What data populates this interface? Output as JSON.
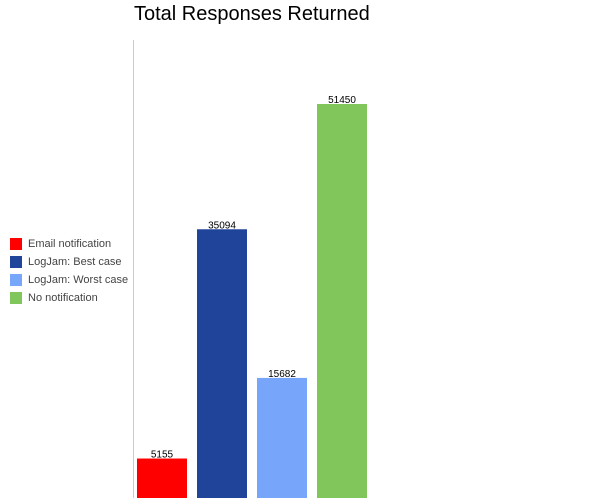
{
  "chart_data": {
    "type": "bar",
    "title": "Total Responses Returned",
    "xlabel": "",
    "ylabel": "",
    "ylim": [
      0,
      51450
    ],
    "grid": false,
    "legend_position": "left",
    "series": [
      {
        "name": "Email notification",
        "value": 5155,
        "color": "#ff0000"
      },
      {
        "name": "LogJam: Best case",
        "value": 35094,
        "color": "#21449b"
      },
      {
        "name": "LogJam: Worst case",
        "value": 15682,
        "color": "#77a5fa"
      },
      {
        "name": "No notification",
        "value": 51450,
        "color": "#80c65a"
      }
    ]
  }
}
